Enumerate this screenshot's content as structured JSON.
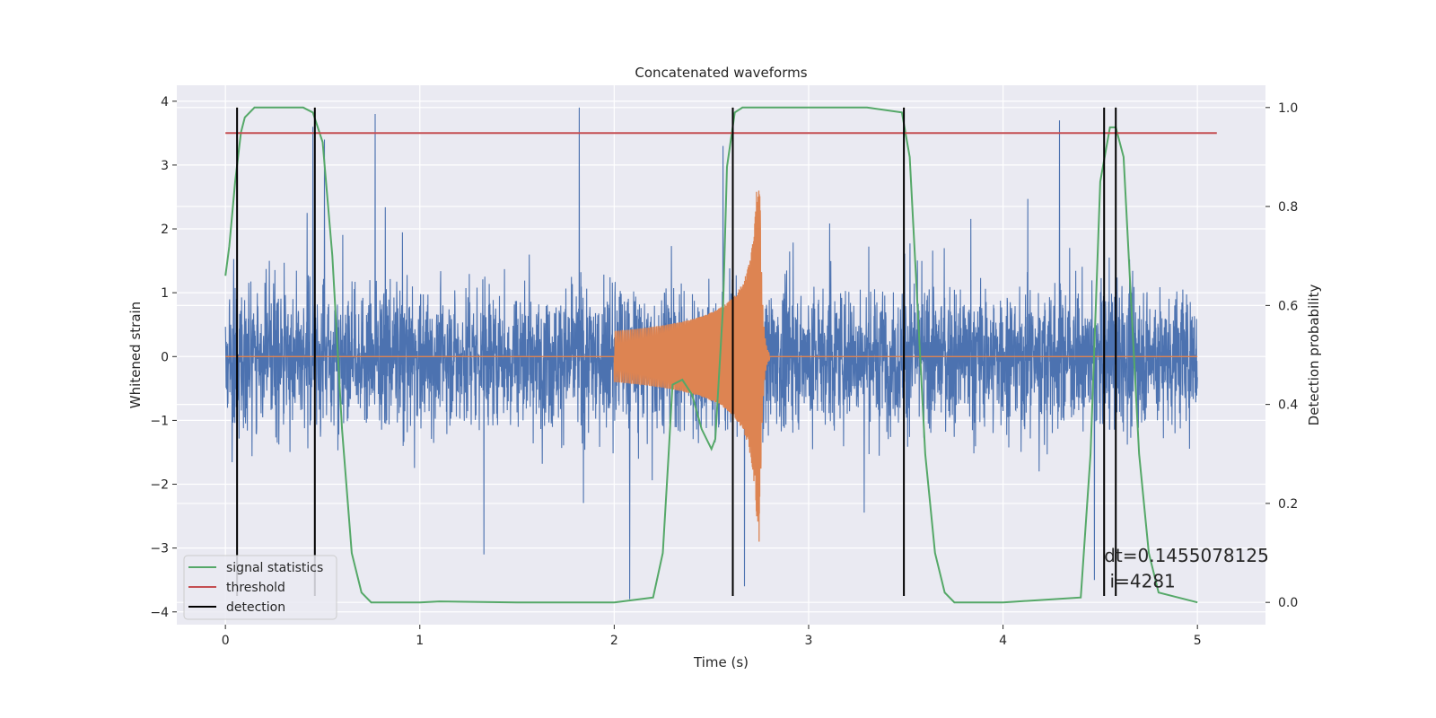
{
  "chart_data": {
    "type": "line",
    "title": "Concatenated waveforms",
    "xlabel": "Time (s)",
    "ylabel": "Whitened strain",
    "y2label": "Detection probability",
    "xlim": [
      -0.25,
      5.35
    ],
    "ylim": [
      -4.2,
      4.25
    ],
    "y2lim": [
      -0.045,
      1.045
    ],
    "xticks": [
      0,
      1,
      2,
      3,
      4,
      5
    ],
    "yticks": [
      -4,
      -3,
      -2,
      -1,
      0,
      1,
      2,
      3,
      4
    ],
    "y2ticks": [
      0.0,
      0.2,
      0.4,
      0.6,
      0.8,
      1.0
    ],
    "xtick_labels": [
      "0",
      "1",
      "2",
      "3",
      "4",
      "5"
    ],
    "ytick_labels": [
      "−4",
      "−3",
      "−2",
      "−1",
      "0",
      "1",
      "2",
      "3",
      "4"
    ],
    "y2tick_labels": [
      "0.0",
      "0.2",
      "0.4",
      "0.6",
      "0.8",
      "1.0"
    ],
    "grid": true,
    "legend_position": "lower-left",
    "colors": {
      "noise": "#4c72b0",
      "chirp": "#dd8452",
      "signal_statistics": "#55a868",
      "threshold": "#c44e52",
      "detection": "#000000",
      "axes_background": "#eaeaf2",
      "grid": "#ffffff"
    },
    "noise_series": {
      "x_range": [
        0,
        5
      ],
      "typical_amplitude": 1.2,
      "peaks": [
        {
          "x": 0.45,
          "y": 3.6
        },
        {
          "x": 0.51,
          "y": 3.4
        },
        {
          "x": 0.77,
          "y": 3.8
        },
        {
          "x": 1.82,
          "y": 3.9
        },
        {
          "x": 2.56,
          "y": 3.3
        },
        {
          "x": 2.08,
          "y": -3.8
        },
        {
          "x": 1.33,
          "y": -3.1
        },
        {
          "x": 4.47,
          "y": -3.5
        },
        {
          "x": 4.58,
          "y": 3.9
        },
        {
          "x": 4.29,
          "y": 3.7
        },
        {
          "x": 2.67,
          "y": -3.6
        }
      ]
    },
    "chirp_series": {
      "start": 2.0,
      "merger": 2.75,
      "amplitude_start": 0.4,
      "amplitude_peak": 2.6,
      "amplitude_min": -2.9
    },
    "series": [
      {
        "name": "signal statistics",
        "axis": "right",
        "x": [
          0.0,
          0.02,
          0.05,
          0.08,
          0.1,
          0.15,
          0.2,
          0.3,
          0.4,
          0.45,
          0.5,
          0.55,
          0.6,
          0.65,
          0.7,
          0.75,
          1.0,
          1.1,
          1.5,
          2.0,
          2.2,
          2.25,
          2.28,
          2.3,
          2.35,
          2.4,
          2.45,
          2.5,
          2.52,
          2.56,
          2.58,
          2.62,
          2.66,
          2.7,
          3.0,
          3.3,
          3.48,
          3.52,
          3.56,
          3.6,
          3.65,
          3.7,
          3.75,
          4.0,
          4.4,
          4.45,
          4.5,
          4.55,
          4.58,
          4.62,
          4.66,
          4.7,
          4.75,
          4.8,
          5.0
        ],
        "y": [
          0.66,
          0.72,
          0.85,
          0.95,
          0.98,
          1.0,
          1.0,
          1.0,
          1.0,
          0.99,
          0.93,
          0.7,
          0.35,
          0.1,
          0.02,
          0.0,
          0.0,
          0.002,
          0.0,
          0.0,
          0.01,
          0.1,
          0.3,
          0.44,
          0.45,
          0.42,
          0.35,
          0.31,
          0.33,
          0.6,
          0.88,
          0.99,
          1.0,
          1.0,
          1.0,
          1.0,
          0.99,
          0.9,
          0.6,
          0.3,
          0.1,
          0.02,
          0.0,
          0.0,
          0.01,
          0.3,
          0.85,
          0.96,
          0.96,
          0.9,
          0.6,
          0.3,
          0.1,
          0.02,
          0.0
        ]
      },
      {
        "name": "threshold",
        "axis": "left",
        "x": [
          0,
          5.1
        ],
        "y": [
          3.5,
          3.5
        ]
      },
      {
        "name": "detection",
        "type": "vlines",
        "x": [
          0.06,
          0.46,
          2.61,
          3.49,
          4.52,
          4.58
        ],
        "y_range": [
          -3.75,
          3.9
        ]
      }
    ],
    "annotation": {
      "line1": "dt=0.1455078125",
      "line2": " i=4281"
    },
    "legend": [
      {
        "label": "signal statistics",
        "series": "signal_statistics"
      },
      {
        "label": "threshold",
        "series": "threshold"
      },
      {
        "label": "detection",
        "series": "detection"
      }
    ]
  }
}
